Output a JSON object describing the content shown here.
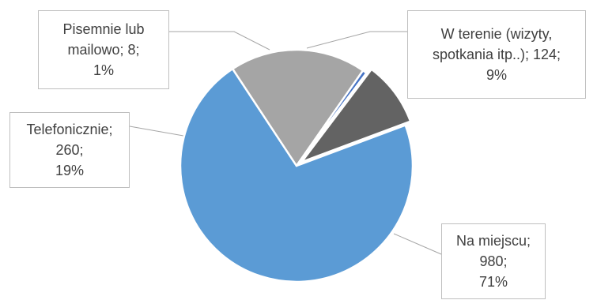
{
  "chart_data": {
    "type": "pie",
    "title": "",
    "categories": [
      "Na miejscu",
      "Telefonicznie",
      "Pisemnie lub mailowo",
      "W terenie (wizyty, spotkania itp..)"
    ],
    "values": [
      980,
      260,
      8,
      124
    ],
    "percent_labels": [
      "71%",
      "19%",
      "1%",
      "9%"
    ],
    "colors": [
      "#5b9bd5",
      "#a5a5a5",
      "#4472c4",
      "#636363"
    ],
    "legend": "none",
    "data_labels": [
      {
        "lines": [
          "Na miejscu;",
          "980;",
          "71%"
        ]
      },
      {
        "lines": [
          "Telefonicznie;",
          "260;",
          "19%"
        ]
      },
      {
        "lines": [
          "Pisemnie lub",
          "mailowo; 8;",
          "1%"
        ]
      },
      {
        "lines": [
          "W terenie (wizyty,",
          "spotkania itp..); 124;",
          "9%"
        ]
      }
    ]
  }
}
